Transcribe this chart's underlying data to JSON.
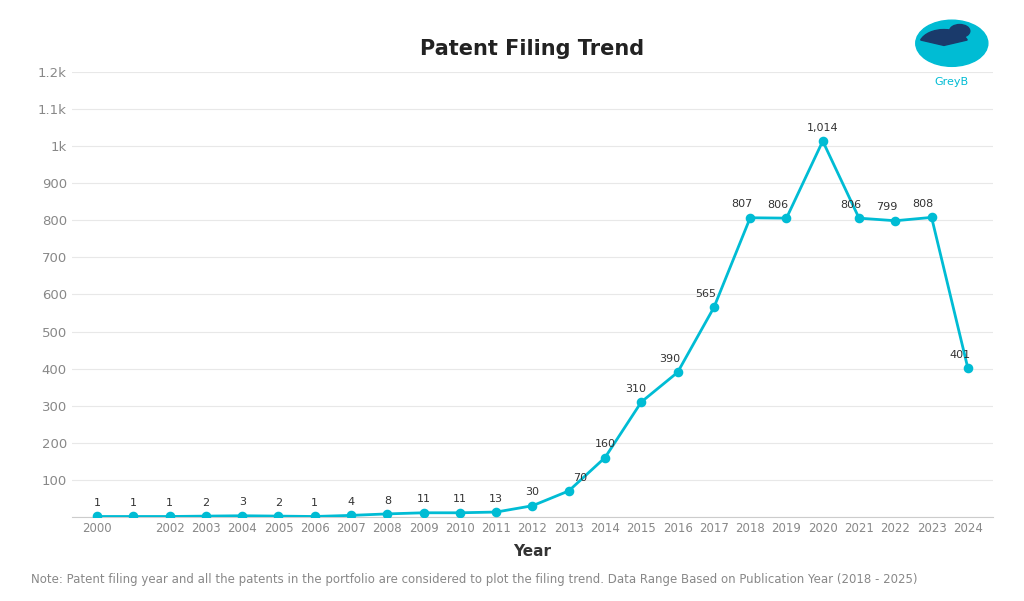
{
  "years": [
    2000,
    2001,
    2002,
    2003,
    2004,
    2005,
    2006,
    2007,
    2008,
    2009,
    2010,
    2011,
    2012,
    2013,
    2014,
    2015,
    2016,
    2017,
    2018,
    2019,
    2020,
    2021,
    2022,
    2023,
    2024
  ],
  "values": [
    1,
    1,
    1,
    2,
    3,
    2,
    1,
    4,
    8,
    11,
    11,
    13,
    30,
    70,
    160,
    310,
    390,
    565,
    807,
    806,
    1014,
    806,
    799,
    808,
    401
  ],
  "xtick_years": [
    2000,
    2002,
    2003,
    2004,
    2005,
    2006,
    2007,
    2008,
    2009,
    2010,
    2011,
    2012,
    2013,
    2014,
    2015,
    2016,
    2017,
    2018,
    2019,
    2020,
    2021,
    2022,
    2023,
    2024
  ],
  "line_color": "#00BCD4",
  "marker_color": "#00BCD4",
  "background_color": "#ffffff",
  "title": "Patent Filing Trend",
  "title_fontsize": 15,
  "xlabel": "Year",
  "xlabel_fontsize": 11,
  "ylim": [
    0,
    1200
  ],
  "yticks": [
    0,
    100,
    200,
    300,
    400,
    500,
    600,
    700,
    800,
    900,
    1000,
    1100,
    1200
  ],
  "ytick_labels": [
    "",
    "100",
    "200",
    "300",
    "400",
    "500",
    "600",
    "700",
    "800",
    "900",
    "1k",
    "1.1k",
    "1.2k"
  ],
  "note_text": "Note: Patent filing year and all the patents in the portfolio are considered to plot the filing trend. Data Range Based on Publication Year (2018 - 2025)",
  "note_fontsize": 8.5,
  "label_fontsize": 8,
  "grid_color": "#e8e8e8",
  "tick_color": "#888888",
  "label_color": "#333333",
  "greyb_color": "#00BCD4"
}
